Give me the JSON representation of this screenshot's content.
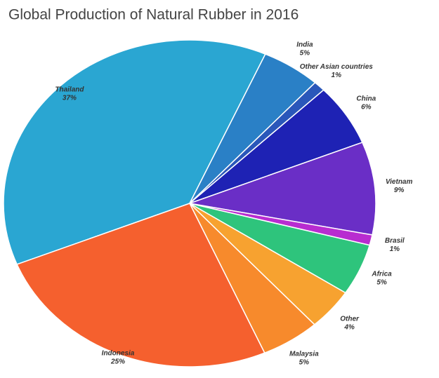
{
  "chart_data": {
    "type": "pie",
    "title": "Global Production of Natural Rubber in 2016",
    "categories": [
      "Thailand",
      "India",
      "Other Asian countries",
      "China",
      "Vietnam",
      "Brasil",
      "Africa",
      "Other",
      "Malaysia",
      "Indonesia"
    ],
    "values": [
      37,
      5,
      1,
      6,
      9,
      1,
      5,
      4,
      5,
      25
    ],
    "value_labels": [
      "37%",
      "5%",
      "1%",
      "6%",
      "9%",
      "1%",
      "5%",
      "4%",
      "5%",
      "25%"
    ],
    "colors": [
      "#2aa6d2",
      "#2a80c6",
      "#2a57ba",
      "#1e22b4",
      "#6a2ec6",
      "#b82cd0",
      "#2ec47c",
      "#f7a230",
      "#f78a2c",
      "#f5602e"
    ]
  }
}
